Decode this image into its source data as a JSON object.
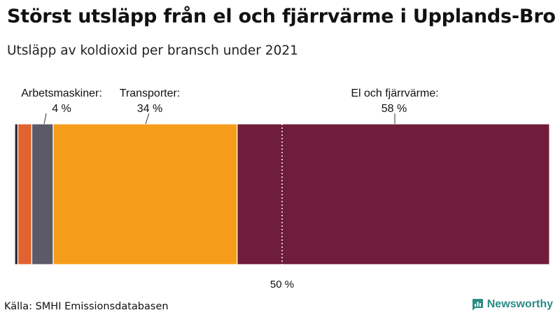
{
  "chart_data": {
    "type": "bar",
    "orientation": "horizontal-stacked",
    "title": "Störst utsläpp från el och fjärrvärme i Upplands-Bro",
    "subtitle": "Utsläpp av koldioxid per bransch under 2021",
    "xlim": [
      0,
      100
    ],
    "segments": [
      {
        "value": 0.6,
        "color": "#2b2b3a"
      },
      {
        "value": 2.6,
        "color": "#e0642f"
      },
      {
        "value": 4.0,
        "color": "#5b5a66",
        "label": "Arbetsmaskiner:",
        "pct": "4 %"
      },
      {
        "value": 34.4,
        "color": "#f59d1a",
        "label": "Transporter:",
        "pct": "34 %"
      },
      {
        "value": 58.4,
        "color": "#701c3b",
        "label": "El och fjärrvärme:",
        "pct": "58 %"
      }
    ],
    "reference": {
      "value": 50,
      "label": "50 %"
    }
  },
  "source": "Källa: SMHI Emissionsdatabasen",
  "brand": {
    "name": "Newsworthy",
    "icon": "bar-chart-speech-icon",
    "color": "#2a8c84"
  }
}
